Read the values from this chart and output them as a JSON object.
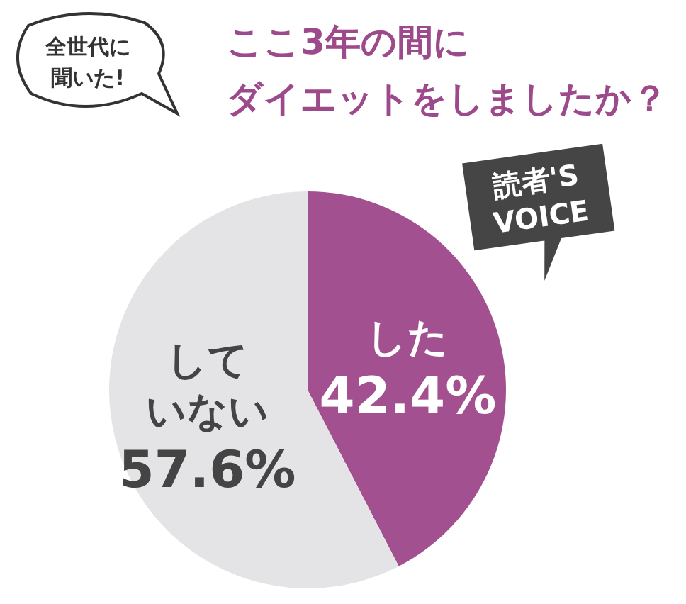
{
  "chart_data": {
    "type": "pie",
    "title": "ここ3年の間にダイエットをしましたか？",
    "categories": [
      "した",
      "していない"
    ],
    "values": [
      42.4,
      57.6
    ],
    "value_labels": [
      "42.4%",
      "57.6%"
    ],
    "colors": [
      "#a2508f",
      "#e4e4e6"
    ],
    "annotations": [
      "全世代に聞いた!",
      "読者'S VOICE"
    ]
  }
}
